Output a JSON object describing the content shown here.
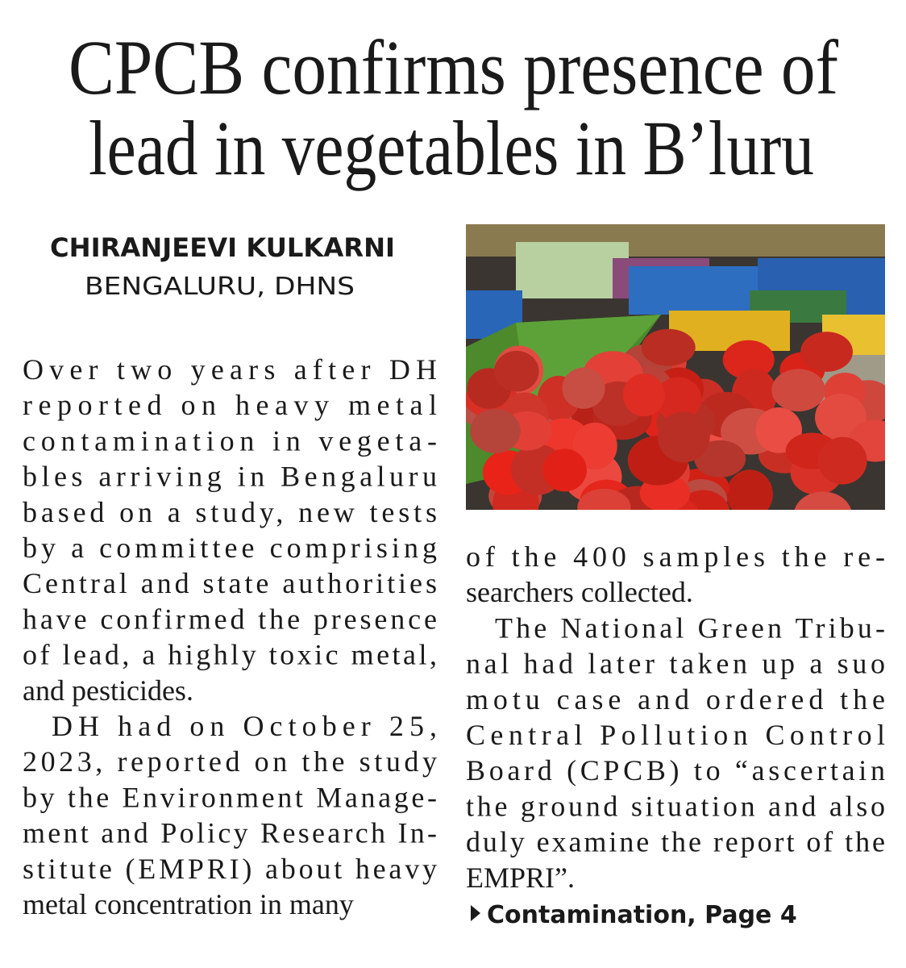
{
  "headline": {
    "lines": [
      "CPCB confirms presence of",
      "lead in vegetables in B’luru"
    ]
  },
  "byline": {
    "author": "CHIRANJEEVI KULKARNI",
    "dateline": "BENGALURU, DHNS"
  },
  "columns": [
    {
      "paragraphs": [
        {
          "lines": [
            "Over two years after DH",
            "reported on heavy metal",
            "contamination in vegeta-",
            "bles arriving in Bengaluru",
            "based on a study, new tests",
            "by a committee comprising",
            "Central and state authorities",
            "have confirmed the presence",
            "of lead, a highly toxic metal,",
            "and pesticides."
          ]
        },
        {
          "lines": [
            "DH had on October 25,",
            "2023, reported on the study",
            "by the Environment Manage-",
            "ment and Policy Research In-",
            "stitute (EMPRI) about heavy",
            "metal concentration in many"
          ]
        }
      ]
    },
    {
      "paragraphs": [
        {
          "lines": [
            "of the 400 samples the re-",
            "searchers collected."
          ]
        },
        {
          "lines": [
            "The National Green Tribu-",
            "nal had later taken up a suo",
            "motu case and ordered the",
            "Central Pollution Control",
            "Board (CPCB) to “ascertain",
            "the ground situation and also",
            "duly examine the report of the",
            "EMPRI”."
          ]
        }
      ]
    }
  ],
  "jump": "Contamination, Page 4"
}
